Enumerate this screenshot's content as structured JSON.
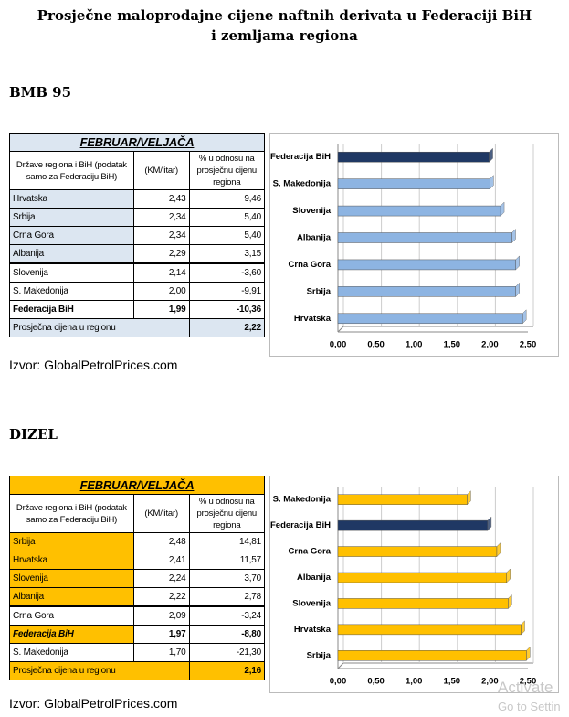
{
  "title": "Prosječne maloprodajne cijene naftnih derivata u Federaciji BiH i zemljama regiona",
  "sections": [
    {
      "heading": "BMB 95",
      "table": {
        "period": "FEBRUAR/VELJAČA",
        "columns": [
          "Države regiona i BiH (podatak samo za Federaciju BiH)",
          "(KM/litar)",
          "% u odnosu na prosječnu cijenu regiona"
        ],
        "rows": [
          [
            "Hrvatska",
            "2,43",
            "9,46"
          ],
          [
            "Srbija",
            "2,34",
            "5,40"
          ],
          [
            "Crna Gora",
            "2,34",
            "5,40"
          ],
          [
            "Albanija",
            "2,29",
            "3,15"
          ],
          [
            "Slovenija",
            "2,14",
            "-3,60"
          ],
          [
            "S. Makedonija",
            "2,00",
            "-9,91"
          ],
          [
            "Federacija BiH",
            "1,99",
            "-10,36"
          ]
        ],
        "summary": [
          "Prosječna cijena u regionu",
          "2,22"
        ]
      },
      "chart": {
        "type": "bar",
        "orientation": "horizontal",
        "categories": [
          "Federacija BiH",
          "S. Makedonija",
          "Slovenija",
          "Albanija",
          "Crna Gora",
          "Srbija",
          "Hrvatska"
        ],
        "values": [
          1.99,
          2.0,
          2.14,
          2.29,
          2.34,
          2.34,
          2.43
        ],
        "colors": [
          "#1f3864",
          "#8db4e2",
          "#8db4e2",
          "#8db4e2",
          "#8db4e2",
          "#8db4e2",
          "#8db4e2"
        ],
        "xlim": [
          0,
          2.5
        ],
        "xticks": [
          {
            "value": 0,
            "label": "0,00"
          },
          {
            "value": 0.5,
            "label": "0,50"
          },
          {
            "value": 1,
            "label": "1,00"
          },
          {
            "value": 1.5,
            "label": "1,50"
          },
          {
            "value": 2,
            "label": "2,00"
          },
          {
            "value": 2.5,
            "label": "2,50"
          }
        ],
        "grid": true
      },
      "source": "Izvor: GlobalPetrolPrices.com"
    },
    {
      "heading": "DIZEL",
      "table": {
        "period": "FEBRUAR/VELJAČA",
        "columns": [
          "Države regiona i BiH (podatak samo za Federaciju BiH)",
          "(KM/litar)",
          "% u odnosu na prosječnu cijenu regiona"
        ],
        "rows": [
          [
            "Srbija",
            "2,48",
            "14,81"
          ],
          [
            "Hrvatska",
            "2,41",
            "11,57"
          ],
          [
            "Slovenija",
            "2,24",
            "3,70"
          ],
          [
            "Albanija",
            "2,22",
            "2,78"
          ],
          [
            "Crna Gora",
            "2,09",
            "-3,24"
          ],
          [
            "Federacija BiH",
            "1,97",
            "-8,80"
          ],
          [
            "S. Makedonija",
            "1,70",
            "-21,30"
          ]
        ],
        "summary": [
          "Prosječna cijena u regionu",
          "2,16"
        ]
      },
      "chart": {
        "type": "bar",
        "orientation": "horizontal",
        "categories": [
          "S. Makedonija",
          "Federacija BiH",
          "Crna Gora",
          "Albanija",
          "Slovenija",
          "Hrvatska",
          "Srbija"
        ],
        "values": [
          1.7,
          1.97,
          2.09,
          2.22,
          2.24,
          2.41,
          2.48
        ],
        "colors": [
          "#ffc000",
          "#1f3864",
          "#ffc000",
          "#ffc000",
          "#ffc000",
          "#ffc000",
          "#ffc000"
        ],
        "xlim": [
          0,
          2.5
        ],
        "xticks": [
          {
            "value": 0,
            "label": "0,00"
          },
          {
            "value": 0.5,
            "label": "0,50"
          },
          {
            "value": 1,
            "label": "1,00"
          },
          {
            "value": 1.5,
            "label": "1,50"
          },
          {
            "value": 2,
            "label": "2,00"
          },
          {
            "value": 2.5,
            "label": "2,50"
          }
        ],
        "grid": true
      },
      "source": "Izvor: GlobalPetrolPrices.com"
    }
  ],
  "watermark": [
    "Activate",
    "Go to Settin"
  ]
}
